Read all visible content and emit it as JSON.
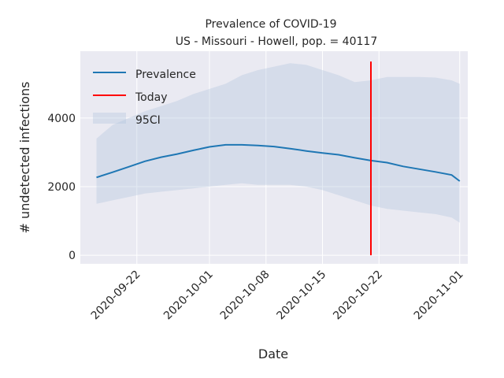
{
  "chart_data": {
    "type": "line",
    "title": "Prevalence of COVID-19",
    "subtitle": "US - Missouri - Howell, pop. = 40117",
    "xlabel": "Date",
    "ylabel": "# undetected infections",
    "x_ticks": [
      "2020-09-22",
      "2020-10-01",
      "2020-10-08",
      "2020-10-15",
      "2020-10-22",
      "2020-11-01"
    ],
    "y_ticks": [
      0,
      2000,
      4000
    ],
    "xlim": [
      "2020-09-15",
      "2020-11-02"
    ],
    "ylim": [
      -250,
      5950
    ],
    "grid": true,
    "legend_position": "top-left",
    "series": [
      {
        "name": "Prevalence",
        "color": "#1f77b4",
        "x": [
          "2020-09-17",
          "2020-09-19",
          "2020-09-21",
          "2020-09-23",
          "2020-09-25",
          "2020-09-27",
          "2020-09-29",
          "2020-10-01",
          "2020-10-03",
          "2020-10-05",
          "2020-10-07",
          "2020-10-09",
          "2020-10-11",
          "2020-10-13",
          "2020-10-15",
          "2020-10-17",
          "2020-10-19",
          "2020-10-21",
          "2020-10-23",
          "2020-10-25",
          "2020-10-27",
          "2020-10-29",
          "2020-10-31",
          "2020-11-01"
        ],
        "y": [
          2270,
          2420,
          2580,
          2740,
          2860,
          2950,
          3060,
          3160,
          3220,
          3220,
          3200,
          3170,
          3110,
          3040,
          2980,
          2930,
          2840,
          2760,
          2700,
          2590,
          2510,
          2430,
          2340,
          2160
        ]
      }
    ],
    "band": {
      "name": "95CI",
      "color": "#b0c4de",
      "x": [
        "2020-09-17",
        "2020-09-19",
        "2020-09-21",
        "2020-09-23",
        "2020-09-25",
        "2020-09-27",
        "2020-09-29",
        "2020-10-01",
        "2020-10-03",
        "2020-10-05",
        "2020-10-07",
        "2020-10-09",
        "2020-10-11",
        "2020-10-13",
        "2020-10-15",
        "2020-10-17",
        "2020-10-19",
        "2020-10-21",
        "2020-10-23",
        "2020-10-25",
        "2020-10-27",
        "2020-10-29",
        "2020-10-31",
        "2020-11-01"
      ],
      "upper": [
        3400,
        3800,
        4000,
        4200,
        4350,
        4500,
        4700,
        4850,
        5000,
        5250,
        5400,
        5500,
        5600,
        5550,
        5400,
        5250,
        5050,
        5100,
        5200,
        5200,
        5200,
        5180,
        5100,
        5000
      ],
      "lower": [
        1500,
        1600,
        1700,
        1800,
        1850,
        1900,
        1950,
        2000,
        2050,
        2100,
        2050,
        2050,
        2050,
        2000,
        1900,
        1750,
        1600,
        1450,
        1350,
        1300,
        1250,
        1200,
        1100,
        950
      ]
    },
    "today": {
      "name": "Today",
      "x": "2020-10-21",
      "color": "#ff0000",
      "y_range": [
        0,
        5650
      ]
    }
  }
}
